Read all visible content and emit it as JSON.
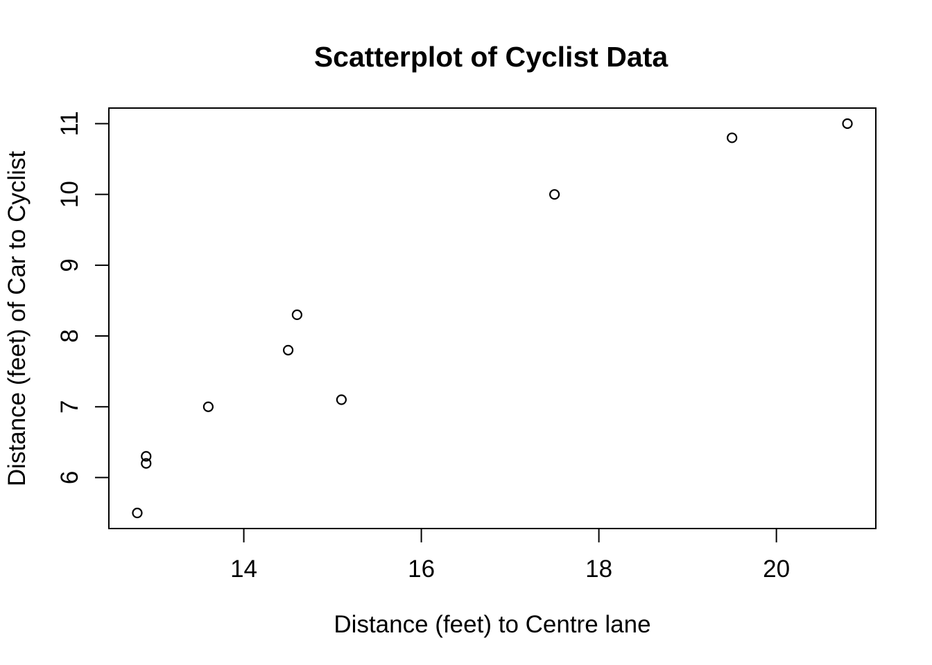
{
  "chart_data": {
    "type": "scatter",
    "title": "Scatterplot of Cyclist Data",
    "xlabel": "Distance (feet) to Centre lane",
    "ylabel": "Distance (feet) of Car to Cyclist",
    "x": [
      12.8,
      12.9,
      12.9,
      13.6,
      14.5,
      14.6,
      15.1,
      17.5,
      19.5,
      20.8
    ],
    "y": [
      5.5,
      6.2,
      6.3,
      7.0,
      7.8,
      8.3,
      7.1,
      10.0,
      10.8,
      11.0
    ],
    "xlim": [
      12.48,
      21.12
    ],
    "ylim": [
      5.28,
      11.22
    ],
    "xticks": [
      "14",
      "16",
      "18",
      "20"
    ],
    "yticks": [
      "6",
      "7",
      "8",
      "9",
      "10",
      "11"
    ],
    "grid": false,
    "legend": null,
    "marker": "open-circle",
    "colors": {
      "points": "#000000",
      "axis": "#000000",
      "text": "#000000",
      "background": "#ffffff"
    }
  }
}
